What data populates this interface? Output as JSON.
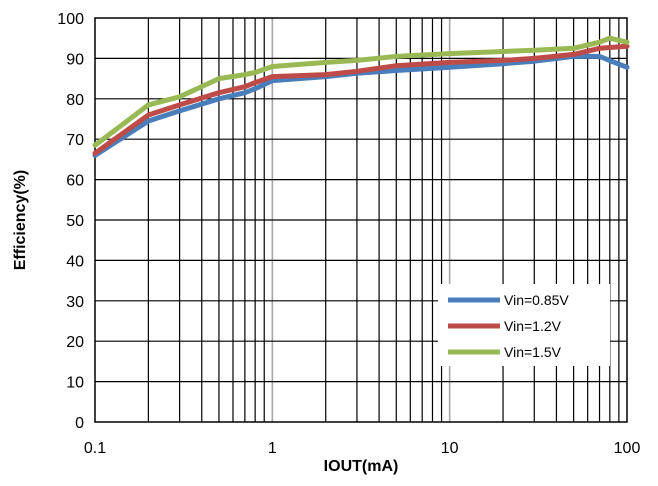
{
  "chart_data": {
    "type": "line",
    "xlabel": "IOUT(mA)",
    "ylabel": "Efficiency(%)",
    "xscale": "log",
    "xlim": [
      0.1,
      100
    ],
    "ylim": [
      0,
      100
    ],
    "grid": true,
    "x_ticks": [
      "0.1",
      "1",
      "10",
      "100"
    ],
    "y_ticks": [
      "0",
      "10",
      "20",
      "30",
      "40",
      "50",
      "60",
      "70",
      "80",
      "90",
      "100"
    ],
    "legend_position": "bottom-right",
    "series": [
      {
        "name": "Vin=0.85V",
        "color": "#4a7ebb",
        "x": [
          0.1,
          0.2,
          0.3,
          0.5,
          0.7,
          0.8,
          1,
          2,
          3,
          5,
          10,
          20,
          30,
          50,
          70,
          100
        ],
        "y": [
          66,
          74.5,
          77,
          80,
          81.5,
          82.5,
          84.5,
          85.5,
          86.3,
          87,
          87.8,
          88.7,
          89.3,
          90.5,
          90.5,
          87.8
        ]
      },
      {
        "name": "Vin=1.2V",
        "color": "#be4b48",
        "x": [
          0.1,
          0.2,
          0.3,
          0.5,
          0.7,
          0.8,
          1,
          2,
          3,
          5,
          10,
          20,
          30,
          50,
          70,
          100
        ],
        "y": [
          66.5,
          76,
          78.5,
          81.5,
          83,
          84,
          85.5,
          86,
          86.8,
          88.2,
          89,
          89.5,
          90,
          91,
          92.5,
          93
        ]
      },
      {
        "name": "Vin=1.5V",
        "color": "#98b954",
        "x": [
          0.1,
          0.2,
          0.3,
          0.5,
          0.7,
          0.8,
          1,
          2,
          3,
          5,
          10,
          20,
          30,
          50,
          70,
          80,
          100
        ],
        "y": [
          68.5,
          78.5,
          80.5,
          85,
          86,
          86.5,
          88,
          89,
          89.5,
          90.5,
          91.2,
          91.7,
          92,
          92.5,
          94,
          95,
          94
        ]
      }
    ]
  }
}
